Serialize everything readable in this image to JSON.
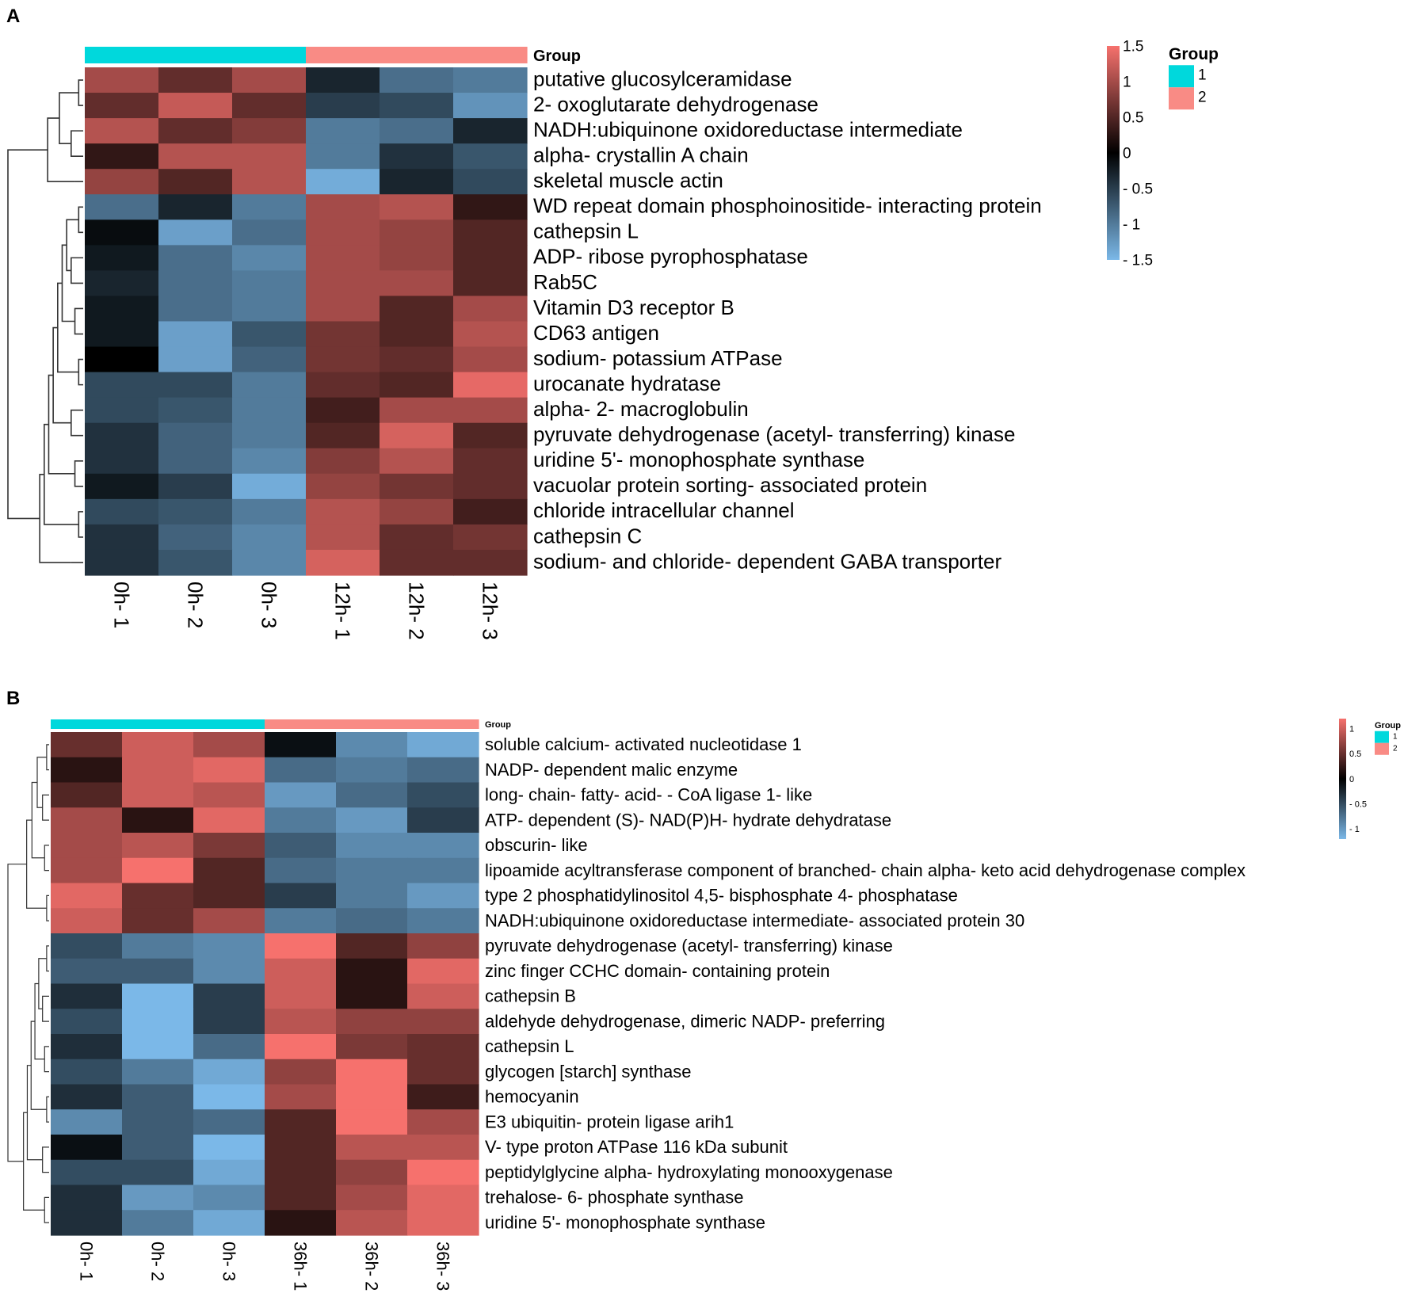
{
  "figure": {
    "panels": [
      "A",
      "B"
    ]
  },
  "colors": {
    "group1": "#00d8dc",
    "group2": "#f98b85",
    "low": "#7bb8e8",
    "mid": "#000000",
    "high": "#f6716d"
  },
  "chart_data": [
    {
      "type": "heatmap",
      "panel_label": "A",
      "title": "",
      "group_bar_label": "Group",
      "columns": [
        "0h- 1",
        "0h- 2",
        "0h- 3",
        "12h- 1",
        "12h- 2",
        "12h- 3"
      ],
      "column_groups": [
        1,
        1,
        1,
        2,
        2,
        2
      ],
      "rows": [
        "putative glucosylceramidase",
        "2- oxoglutarate dehydrogenase",
        "NADH:ubiquinone oxidoreductase intermediate",
        "alpha- crystallin A chain",
        "skeletal muscle actin",
        "WD repeat domain phosphoinositide- interacting protein",
        "cathepsin L",
        "ADP- ribose pyrophosphatase",
        "Rab5C",
        "Vitamin D3 receptor B",
        "CD63 antigen",
        "sodium- potassium ATPase",
        "urocanate hydratase",
        "alpha- 2- macroglobulin",
        "pyruvate dehydrogenase (acetyl- transferring) kinase",
        "uridine 5'- monophosphate synthase",
        "vacuolar protein sorting- associated protein",
        "chloride intracellular channel",
        "cathepsin C",
        "sodium-  and chloride- dependent GABA transporter"
      ],
      "values": [
        [
          1.0,
          0.6,
          1.0,
          -0.3,
          -0.9,
          -1.0
        ],
        [
          0.6,
          1.2,
          0.6,
          -0.5,
          -0.6,
          -1.2
        ],
        [
          1.1,
          0.6,
          0.8,
          -1.0,
          -0.9,
          -0.3
        ],
        [
          0.3,
          1.1,
          1.1,
          -1.0,
          -0.4,
          -0.7
        ],
        [
          0.9,
          0.5,
          1.1,
          -1.4,
          -0.3,
          -0.6
        ],
        [
          -0.9,
          -0.3,
          -1.0,
          1.0,
          1.1,
          0.3
        ],
        [
          -0.1,
          -1.3,
          -0.9,
          1.0,
          0.9,
          0.5
        ],
        [
          -0.2,
          -0.9,
          -1.1,
          1.0,
          0.9,
          0.5
        ],
        [
          -0.3,
          -0.9,
          -1.0,
          1.0,
          1.0,
          0.5
        ],
        [
          -0.2,
          -0.9,
          -1.0,
          1.0,
          0.5,
          1.0
        ],
        [
          -0.2,
          -1.3,
          -0.7,
          0.7,
          0.5,
          1.1
        ],
        [
          0.0,
          -1.3,
          -0.8,
          0.7,
          0.6,
          1.0
        ],
        [
          -0.6,
          -0.6,
          -1.0,
          0.6,
          0.5,
          1.4
        ],
        [
          -0.6,
          -0.7,
          -1.0,
          0.4,
          1.0,
          1.0
        ],
        [
          -0.4,
          -0.8,
          -1.0,
          0.5,
          1.3,
          0.5
        ],
        [
          -0.4,
          -0.8,
          -1.1,
          0.8,
          1.1,
          0.6
        ],
        [
          -0.2,
          -0.5,
          -1.4,
          0.9,
          0.7,
          0.6
        ],
        [
          -0.6,
          -0.7,
          -1.0,
          1.1,
          0.9,
          0.4
        ],
        [
          -0.4,
          -0.8,
          -1.1,
          1.1,
          0.6,
          0.7
        ],
        [
          -0.4,
          -0.7,
          -1.1,
          1.3,
          0.6,
          0.6
        ]
      ],
      "scale": {
        "min": -1.5,
        "max": 1.5,
        "ticks": [
          "1.5",
          "1",
          "0.5",
          "0",
          "- 0.5",
          "- 1",
          "- 1.5"
        ]
      },
      "legend": {
        "title": "Group",
        "items": [
          "1",
          "2"
        ],
        "placement": "top-right"
      }
    },
    {
      "type": "heatmap",
      "panel_label": "B",
      "title": "",
      "group_bar_label": "Group",
      "columns": [
        "0h- 1",
        "0h- 2",
        "0h- 3",
        "36h- 1",
        "36h- 2",
        "36h- 3"
      ],
      "column_groups": [
        1,
        1,
        1,
        2,
        2,
        2
      ],
      "rows": [
        "soluble calcium- activated nucleotidase 1",
        "NADP- dependent malic enzyme",
        "long- chain- fatty- acid- - CoA ligase 1- like",
        "ATP- dependent (S)- NAD(P)H- hydrate dehydratase",
        "obscurin- like",
        "lipoamide acyltransferase component of branched- chain alpha- keto acid dehydrogenase complex",
        "type 2 phosphatidylinositol 4,5- bisphosphate 4- phosphatase",
        "NADH:ubiquinone oxidoreductase intermediate- associated protein 30",
        "pyruvate dehydrogenase (acetyl- transferring) kinase",
        "zinc finger CCHC domain- containing protein",
        "cathepsin B",
        "aldehyde dehydrogenase, dimeric NADP- preferring",
        "cathepsin L",
        "glycogen [starch] synthase",
        "hemocyanin",
        "E3 ubiquitin- protein ligase arih1",
        "V- type proton ATPase 116 kDa subunit",
        "peptidylglycine alpha- hydroxylating monooxygenase",
        "trehalose- 6- phosphate synthase",
        "uridine 5'- monophosphate synthase"
      ],
      "values": [
        [
          0.5,
          1.0,
          0.8,
          -0.1,
          -0.9,
          -1.1
        ],
        [
          0.2,
          1.0,
          1.1,
          -0.7,
          -0.8,
          -0.7
        ],
        [
          0.4,
          1.0,
          0.9,
          -1.0,
          -0.7,
          -0.5
        ],
        [
          0.8,
          0.2,
          1.1,
          -0.8,
          -1.0,
          -0.4
        ],
        [
          0.8,
          0.9,
          0.6,
          -0.6,
          -0.9,
          -0.9
        ],
        [
          0.8,
          1.3,
          0.4,
          -0.7,
          -0.8,
          -0.8
        ],
        [
          1.1,
          0.5,
          0.4,
          -0.4,
          -0.8,
          -1.0
        ],
        [
          1.0,
          0.5,
          0.8,
          -0.8,
          -0.7,
          -0.8
        ],
        [
          -0.5,
          -0.8,
          -0.9,
          1.3,
          0.4,
          0.7
        ],
        [
          -0.6,
          -0.6,
          -0.9,
          1.0,
          0.2,
          1.1
        ],
        [
          -0.3,
          -1.4,
          -0.4,
          1.0,
          0.2,
          1.0
        ],
        [
          -0.5,
          -1.4,
          -0.4,
          0.9,
          0.7,
          0.7
        ],
        [
          -0.3,
          -1.3,
          -0.7,
          1.2,
          0.6,
          0.5
        ],
        [
          -0.5,
          -0.8,
          -1.1,
          0.7,
          1.2,
          0.5
        ],
        [
          -0.3,
          -0.6,
          -1.3,
          0.8,
          1.2,
          0.3
        ],
        [
          -0.9,
          -0.6,
          -0.7,
          0.4,
          1.2,
          0.8
        ],
        [
          -0.1,
          -0.6,
          -1.5,
          0.4,
          0.9,
          0.9
        ],
        [
          -0.5,
          -0.5,
          -1.1,
          0.4,
          0.7,
          1.3
        ],
        [
          -0.3,
          -1.0,
          -0.9,
          0.4,
          0.8,
          1.1
        ],
        [
          -0.3,
          -0.8,
          -1.1,
          0.2,
          0.9,
          1.1
        ]
      ],
      "scale": {
        "min": -1.2,
        "max": 1.2,
        "ticks": [
          "1",
          "0.5",
          "0",
          "- 0.5",
          "- 1"
        ]
      },
      "legend": {
        "title": "Group",
        "items": [
          "1",
          "2"
        ],
        "placement": "top-right"
      }
    }
  ]
}
